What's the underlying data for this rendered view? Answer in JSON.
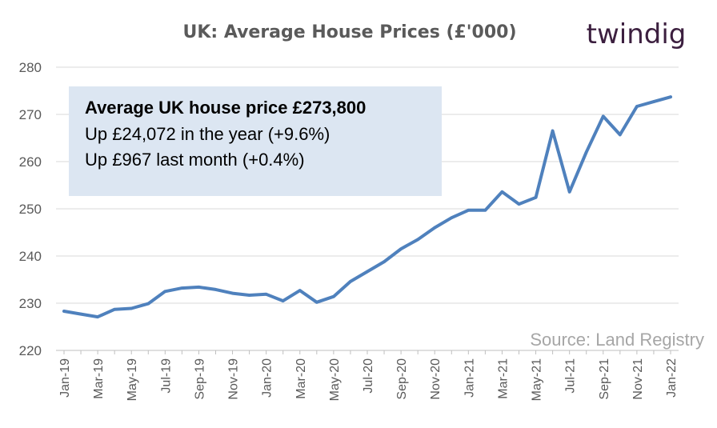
{
  "brand": "twindig",
  "chart_data": {
    "type": "line",
    "title": "UK: Average House Prices (£'000)",
    "xlabel": "",
    "ylabel": "",
    "ylim": [
      220,
      280
    ],
    "yticks": [
      220,
      230,
      240,
      250,
      260,
      270,
      280
    ],
    "grid": true,
    "x": [
      "Jan-19",
      "Feb-19",
      "Mar-19",
      "Apr-19",
      "May-19",
      "Jun-19",
      "Jul-19",
      "Aug-19",
      "Sep-19",
      "Oct-19",
      "Nov-19",
      "Dec-19",
      "Jan-20",
      "Feb-20",
      "Mar-20",
      "Apr-20",
      "May-20",
      "Jun-20",
      "Jul-20",
      "Aug-20",
      "Sep-20",
      "Oct-20",
      "Nov-20",
      "Dec-20",
      "Jan-21",
      "Feb-21",
      "Mar-21",
      "Apr-21",
      "May-21",
      "Jun-21",
      "Jul-21",
      "Aug-21",
      "Sep-21",
      "Oct-21",
      "Nov-21",
      "Dec-21",
      "Jan-22"
    ],
    "xtick_labels": [
      "Jan-19",
      "Mar-19",
      "May-19",
      "Jul-19",
      "Sep-19",
      "Nov-19",
      "Jan-20",
      "Mar-20",
      "May-20",
      "Jul-20",
      "Sep-20",
      "Nov-20",
      "Jan-21",
      "Mar-21",
      "May-21",
      "Jul-21",
      "Sep-21",
      "Nov-21",
      "Jan-22"
    ],
    "series": [
      {
        "values": [
          228.3,
          227.7,
          227.1,
          228.7,
          228.9,
          229.9,
          232.5,
          233.2,
          233.4,
          232.9,
          232.1,
          231.7,
          231.9,
          230.5,
          232.7,
          230.2,
          231.4,
          234.6,
          236.7,
          238.8,
          241.5,
          243.5,
          246.0,
          248.1,
          249.7,
          249.7,
          253.6,
          251.0,
          252.4,
          266.5,
          253.6,
          262.0,
          269.6,
          265.7,
          271.7,
          272.7,
          273.7
        ]
      }
    ],
    "annotation": {
      "line1": "Average UK house price £273,800",
      "line2": "Up £24,072 in the year (+9.6%)",
      "line3": "Up £967  last month (+0.4%)"
    },
    "source": "Source: Land Registry",
    "colors": {
      "series": "#4f81bd",
      "box": "#dce6f2",
      "brand": "#3c1f3f"
    }
  }
}
